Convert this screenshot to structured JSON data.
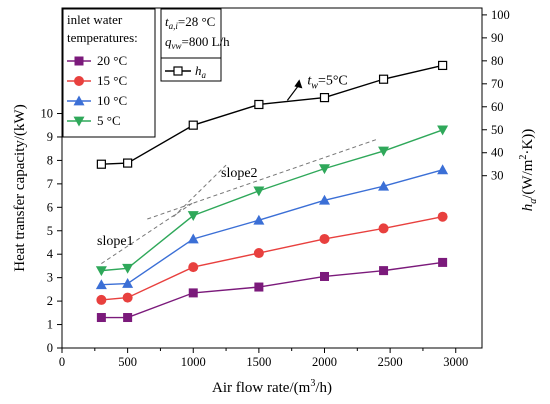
{
  "chart_data": {
    "type": "line",
    "x_label_prefix": "Air flow rate/(m",
    "x_label_sup": "3",
    "x_label_suffix": "/h)",
    "y_left_label": "Heat transfer capacity/(kW)",
    "y_right_label_prefix": "h",
    "y_right_label_sub": "a",
    "y_right_label_mid": "/(W/m",
    "y_right_label_sup": "2",
    "y_right_label_suffix": "·K))",
    "xlim": [
      0,
      3200
    ],
    "x_ticks": [
      0,
      500,
      1000,
      1500,
      2000,
      2500,
      3000
    ],
    "y_left_lim": [
      0,
      14.5
    ],
    "y_left_ticks": [
      0,
      1,
      2,
      3,
      4,
      5,
      6,
      7,
      8,
      9,
      10
    ],
    "y_right_lim": [
      -45,
      103
    ],
    "y_right_ticks": [
      30,
      40,
      50,
      60,
      70,
      80,
      90,
      100
    ],
    "x": [
      300,
      500,
      1000,
      1500,
      2000,
      2450,
      2900
    ],
    "series": [
      {
        "name": "20 °C",
        "axis": "left",
        "marker": "square",
        "color": "#7b1a7b",
        "values": [
          1.3,
          1.3,
          2.35,
          2.6,
          3.05,
          3.3,
          3.65
        ]
      },
      {
        "name": "15 °C",
        "axis": "left",
        "marker": "circle",
        "color": "#e8403e",
        "values": [
          2.05,
          2.15,
          3.45,
          4.05,
          4.65,
          5.1,
          5.6
        ]
      },
      {
        "name": "10 °C",
        "axis": "left",
        "marker": "triangle-up",
        "color": "#3b6fd6",
        "values": [
          2.7,
          2.75,
          4.65,
          5.45,
          6.3,
          6.9,
          7.6
        ]
      },
      {
        "name": "5 °C",
        "axis": "left",
        "marker": "triangle-down",
        "color": "#2fa85a",
        "values": [
          3.3,
          3.4,
          5.65,
          6.7,
          7.65,
          8.4,
          9.3
        ]
      },
      {
        "name": "h_a",
        "axis": "right",
        "marker": "open-square",
        "color": "#000000",
        "values": [
          35,
          35.5,
          52,
          61,
          64,
          72,
          78
        ]
      }
    ],
    "legend_title_line1": "inlet water",
    "legend_title_line2": "temperatures:",
    "legend_labels": [
      "20 °C",
      "15 °C",
      "10 °C",
      "5 °C"
    ],
    "conditions": {
      "tai_var": "t",
      "tai_sub": "a,i",
      "tai_value": "=28 °C",
      "qvw_var": "q",
      "qvw_sub": "vw",
      "qvw_value": "=800 L/h"
    },
    "ha_legend_var": "h",
    "ha_legend_sub": "a",
    "annotations": {
      "slope1": "slope1",
      "slope2": "slope2",
      "tw_var": "t",
      "tw_sub": "w",
      "tw_value": "=5°C"
    }
  }
}
